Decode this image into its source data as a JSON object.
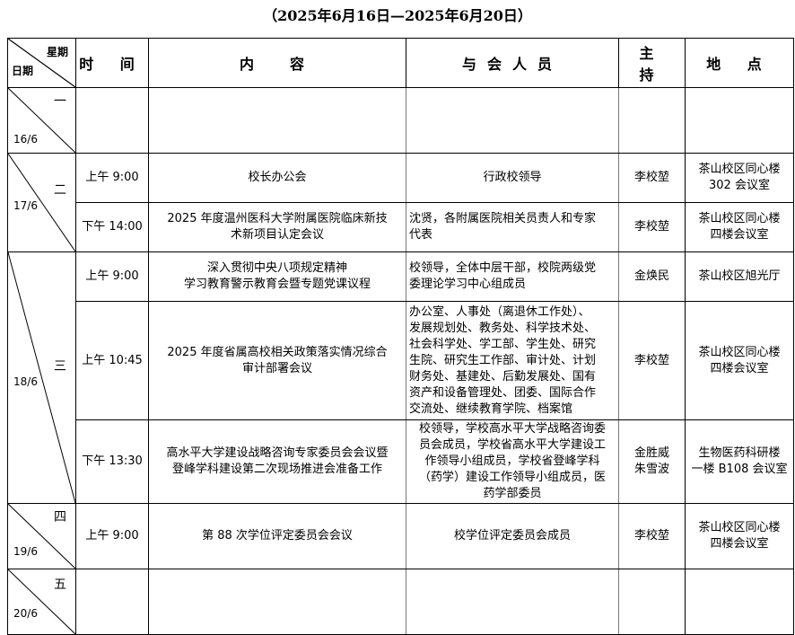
{
  "title": "（2025年6月16日—2025年6月20日）",
  "header": {
    "weekday": "星期",
    "date": "日期",
    "time": "时 间",
    "content": "内　容",
    "attendees": "与会人员",
    "host": "主 持",
    "location": "地 点"
  },
  "days": [
    {
      "weekday": "一",
      "date": "16/6"
    },
    {
      "weekday": "二",
      "date": "17/6"
    },
    {
      "weekday": "三",
      "date": "18/6"
    },
    {
      "weekday": "四",
      "date": "19/6"
    },
    {
      "weekday": "五",
      "date": "20/6"
    }
  ],
  "meetings": [
    {
      "time": "上午 9:00",
      "content": "校长办公会",
      "attendees": "行政校领导",
      "host": "李校堃",
      "location": "茶山校区同心楼\n302 会议室"
    },
    {
      "time": "下午 14:00",
      "content": "2025 年度温州医科大学附属医院临床新技\n术新项目认定会议",
      "attendees": "沈贤，各附属医院相关员责人和专家\n代表",
      "host": "李校堃",
      "location": "茶山校区同心楼\n四楼会议室"
    },
    {
      "time": "上午 9:00",
      "content": "深入贯彻中央八项规定精神\n学习教育警示教育会暨专题党课议程",
      "attendees": "校领导，全体中层干部，校院两级党\n委理论学习中心组成员",
      "host": "金焕民",
      "location": "茶山校区旭光厅"
    },
    {
      "time": "上午 10:45",
      "content": "2025 年度省属高校相关政策落实情况综合\n审计部署会议",
      "attendees": "办公室、人事处（离退休工作处）、\n发展规划处、教务处、科学技术处、\n社会科学处、学工部、学生处、研究\n生院、研究生工作部、审计处、计划\n财务处、基建处、后勤发展处、国有\n资产和设备管理处、团委、国际合作\n交流处、继续教育学院、档案馆",
      "host": "李校堃",
      "location": "茶山校区同心楼\n四楼会议室"
    },
    {
      "time": "下午 13:30",
      "content": "高水平大学建设战略咨询专家委员会会议暨\n登峰学科建设第二次现场推进会准备工作",
      "attendees": "校领导，学校高水平大学战略咨询委\n员会成员，学校省高水平大学建设工\n作领导小组成员，学校省登峰学科\n（药学）建设工作领导小组成员，医\n药学部委员",
      "host": "金胜威\n朱雪波",
      "location": "生物医药科研楼\n一楼 B108 会议室"
    },
    {
      "time": "上午 9:00",
      "content": "第 88 次学位评定委员会会议",
      "attendees": "校学位评定委员会成员",
      "host": "李校堃",
      "location": "茶山校区同心楼\n四楼会议室"
    }
  ]
}
